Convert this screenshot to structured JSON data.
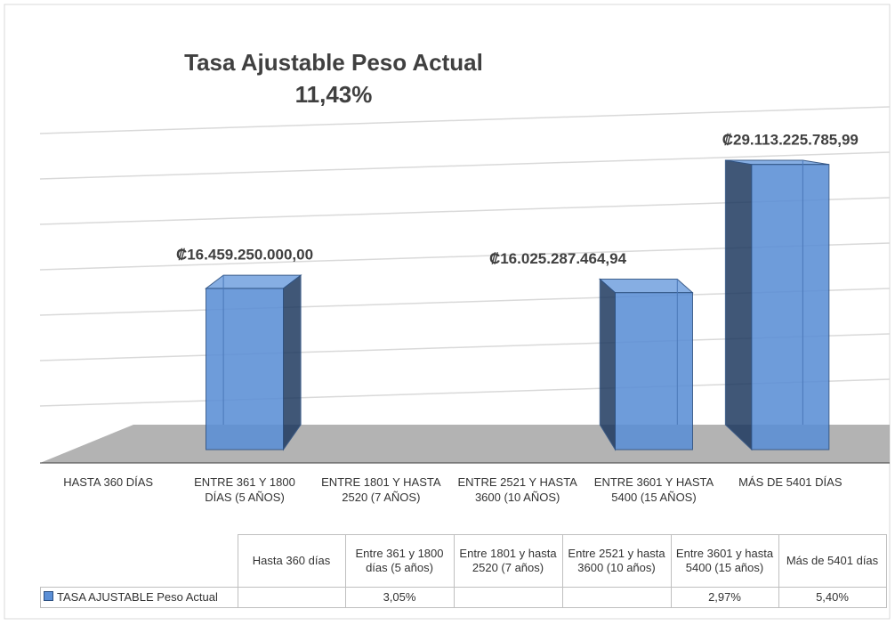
{
  "chart_data": {
    "type": "bar3d",
    "title": "Tasa Ajustable Peso Actual",
    "subtitle": "11,43%",
    "categories": [
      "HASTA 360 DÍAS",
      "ENTRE 361 Y 1800 DÍAS (5 AÑOS)",
      "ENTRE 1801 Y HASTA 2520 (7 AÑOS)",
      "ENTRE  2521 Y HASTA 3600 (10 AÑOS)",
      "ENTRE 3601 Y HASTA 5400 (15 AÑOS)",
      "MÁS DE 5401 DÍAS"
    ],
    "series": [
      {
        "name": "TASA AJUSTABLE Peso Actual",
        "color": "#5b8fd6",
        "values": [
          null,
          16459250000,
          null,
          null,
          16025287464.94,
          29113225785.99
        ],
        "value_labels": [
          null,
          "₡16.459.250.000,00",
          null,
          null,
          "₡16.025.287.464,94",
          "₡29.113.225.785,99"
        ]
      }
    ],
    "ylim": [
      0,
      35000000000
    ],
    "yticks": [
      0,
      5000000000,
      10000000000,
      15000000000,
      20000000000,
      25000000000,
      30000000000,
      35000000000
    ],
    "grid": true,
    "data_table": {
      "columns": [
        "Hasta 360 días",
        "Entre 361 y 1800 días (5 años)",
        "Entre 1801 y hasta 2520 (7 años)",
        "Entre  2521 y hasta 3600 (10 años)",
        "Entre 3601 y hasta 5400 (15 años)",
        "Más de 5401 días"
      ],
      "cells": [
        null,
        "3,05%",
        null,
        null,
        "2,97%",
        "5,40%"
      ]
    }
  }
}
